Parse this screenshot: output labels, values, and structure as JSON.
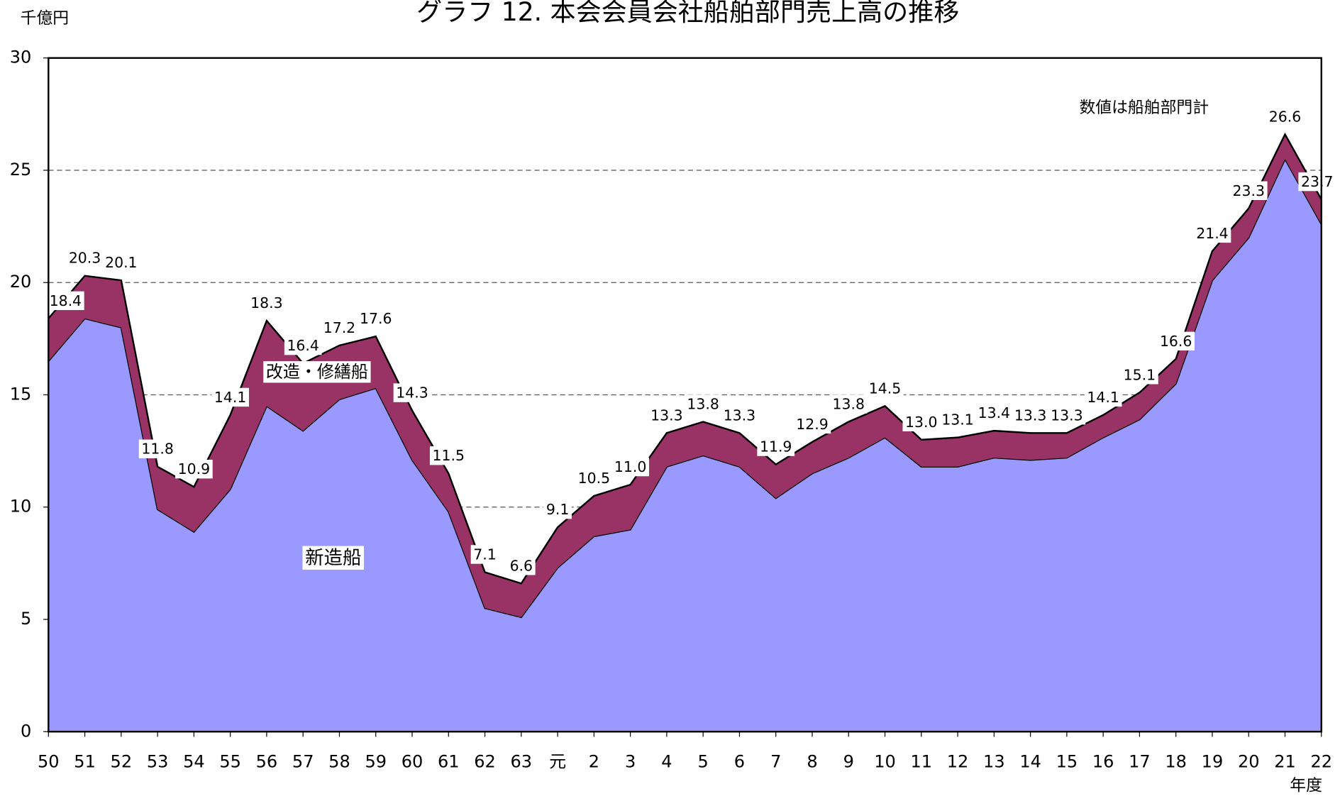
{
  "chart_data": {
    "type": "stacked_area",
    "title": "グラフ 12. 本会会員会社船舶部門売上高の推移",
    "y_label": "千億円",
    "x_label": "年度",
    "annotation": "数値は船舶部門計",
    "categories": [
      "50",
      "51",
      "52",
      "53",
      "54",
      "55",
      "56",
      "57",
      "58",
      "59",
      "60",
      "61",
      "62",
      "63",
      "元",
      "2",
      "3",
      "4",
      "5",
      "6",
      "7",
      "8",
      "9",
      "10",
      "11",
      "12",
      "13",
      "14",
      "15",
      "16",
      "17",
      "18",
      "19",
      "20",
      "21",
      "22"
    ],
    "series": [
      {
        "name": "新造船",
        "color": "#9999ff",
        "values": [
          16.5,
          18.4,
          18.0,
          9.9,
          8.9,
          10.8,
          14.5,
          13.4,
          14.8,
          15.3,
          12.1,
          9.8,
          5.5,
          5.1,
          7.3,
          8.7,
          9.0,
          11.8,
          12.3,
          11.8,
          10.4,
          11.5,
          12.2,
          13.1,
          11.8,
          11.8,
          12.2,
          12.1,
          12.2,
          13.1,
          13.9,
          15.5,
          20.1,
          22.0,
          25.5,
          22.6
        ]
      },
      {
        "name": "改造・修繕船",
        "color": "#993366",
        "values": [
          1.9,
          1.9,
          2.1,
          1.9,
          2.0,
          3.3,
          3.8,
          3.0,
          2.4,
          2.3,
          2.2,
          1.7,
          1.6,
          1.5,
          1.8,
          1.8,
          2.0,
          1.5,
          1.5,
          1.5,
          1.5,
          1.4,
          1.6,
          1.4,
          1.2,
          1.3,
          1.2,
          1.2,
          1.1,
          1.0,
          1.2,
          1.1,
          1.3,
          1.3,
          1.1,
          1.1
        ]
      }
    ],
    "totals": {
      "values": [
        18.4,
        20.3,
        20.1,
        11.8,
        10.9,
        14.1,
        18.3,
        16.4,
        17.2,
        17.6,
        14.3,
        11.5,
        7.1,
        6.6,
        9.1,
        10.5,
        11.0,
        13.3,
        13.8,
        13.3,
        11.9,
        12.9,
        13.8,
        14.5,
        13.0,
        13.1,
        13.4,
        13.3,
        13.3,
        14.1,
        15.1,
        16.6,
        21.4,
        23.3,
        26.6,
        23.7
      ],
      "value_labels": [
        "18.4",
        "20.3",
        "20.1",
        "11.8",
        "10.9",
        "14.1",
        "18.3",
        "16.4",
        "17.2",
        "17.6",
        "14.3",
        "11.5",
        "7.1",
        "6.6",
        "9.1",
        "10.5",
        "11.0",
        "13.3",
        "13.8",
        "13.3",
        "11.9",
        "12.9",
        "13.8",
        "14.5",
        "13.0",
        "13.1",
        "13.4",
        "13.3",
        "13.3",
        "14.1",
        "15.1",
        "16.6",
        "21.4",
        "23.3",
        "26.6",
        "23.7"
      ]
    },
    "ylim": [
      0,
      30
    ],
    "yticks": [
      0,
      5,
      10,
      15,
      20,
      25,
      30
    ],
    "grid": true
  }
}
